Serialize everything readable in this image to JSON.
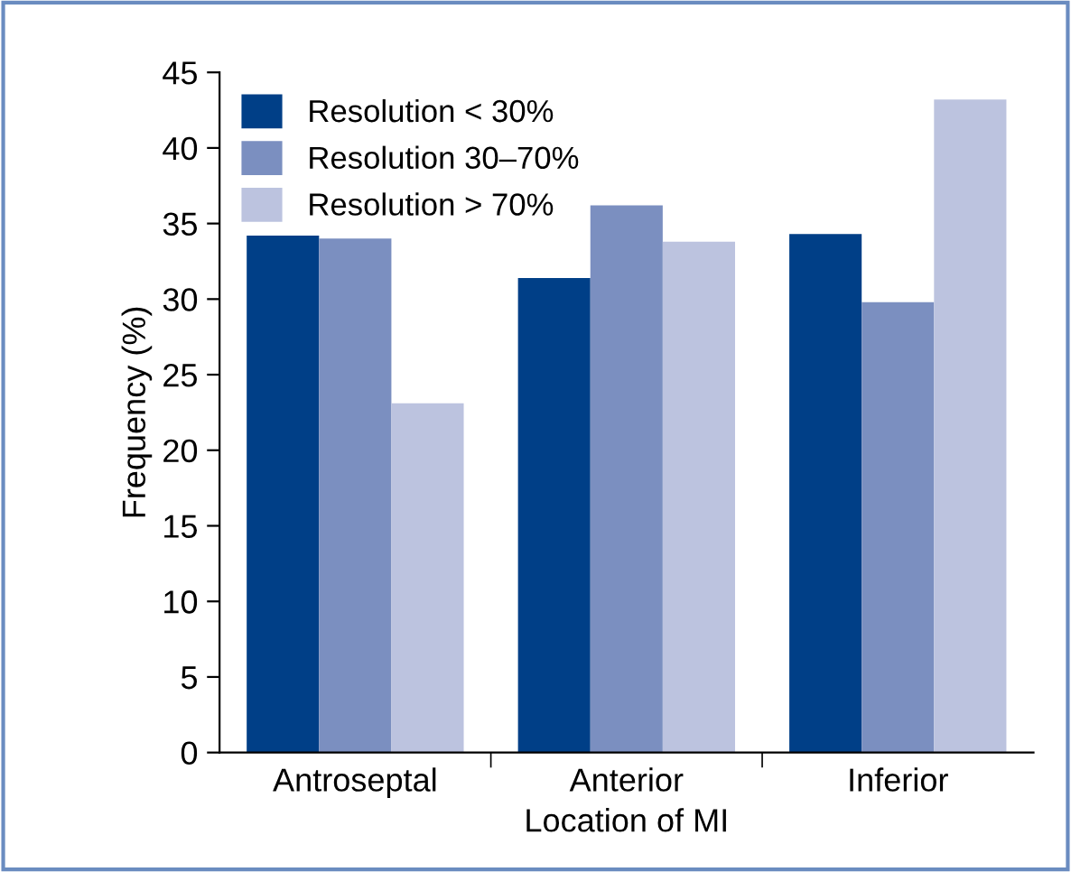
{
  "chart_data": {
    "type": "bar",
    "xlabel": "Location of MI",
    "ylabel": "Frequency (%)",
    "categories": [
      "Antroseptal",
      "Anterior",
      "Inferior"
    ],
    "series": [
      {
        "name": "Resolution < 30%",
        "color": "#003f87",
        "values": [
          34.2,
          31.4,
          34.3
        ]
      },
      {
        "name": "Resolution 30–70%",
        "color": "#7b8fc0",
        "values": [
          34.0,
          36.2,
          29.8
        ]
      },
      {
        "name": "Resolution > 70%",
        "color": "#bcc3df",
        "values": [
          23.1,
          33.8,
          43.2
        ]
      }
    ],
    "ylim": [
      0,
      45
    ],
    "yticks": [
      0,
      5,
      10,
      15,
      20,
      25,
      30,
      35,
      40,
      45
    ],
    "grid": false,
    "legend": "top left"
  }
}
